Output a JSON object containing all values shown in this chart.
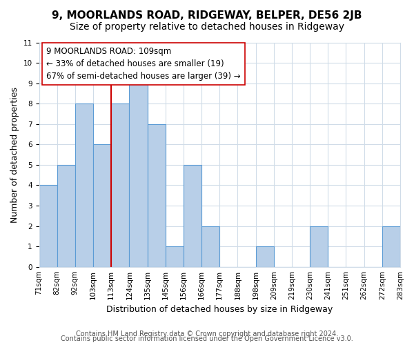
{
  "title": "9, MOORLANDS ROAD, RIDGEWAY, BELPER, DE56 2JB",
  "subtitle": "Size of property relative to detached houses in Ridgeway",
  "xlabel": "Distribution of detached houses by size in Ridgeway",
  "ylabel": "Number of detached properties",
  "bin_edge_labels": [
    "71sqm",
    "82sqm",
    "92sqm",
    "103sqm",
    "113sqm",
    "124sqm",
    "135sqm",
    "145sqm",
    "156sqm",
    "166sqm",
    "177sqm",
    "188sqm",
    "198sqm",
    "209sqm",
    "219sqm",
    "230sqm",
    "241sqm",
    "251sqm",
    "262sqm",
    "272sqm",
    "283sqm"
  ],
  "bar_values": [
    4,
    5,
    8,
    6,
    8,
    9,
    7,
    1,
    5,
    2,
    0,
    0,
    1,
    0,
    0,
    2,
    0,
    0,
    0,
    2
  ],
  "bar_color": "#b8cfe8",
  "bar_edge_color": "#5b9bd5",
  "vline_x": 4,
  "vline_color": "#cc0000",
  "annotation_line1": "9 MOORLANDS ROAD: 109sqm",
  "annotation_line2": "← 33% of detached houses are smaller (19)",
  "annotation_line3": "67% of semi-detached houses are larger (39) →",
  "ylim": [
    0,
    11
  ],
  "yticks": [
    0,
    1,
    2,
    3,
    4,
    5,
    6,
    7,
    8,
    9,
    10,
    11
  ],
  "background_color": "#ffffff",
  "grid_color": "#d0dce8",
  "footer_line1": "Contains HM Land Registry data © Crown copyright and database right 2024.",
  "footer_line2": "Contains public sector information licensed under the Open Government Licence v3.0.",
  "title_fontsize": 11,
  "subtitle_fontsize": 10,
  "axis_label_fontsize": 9,
  "tick_fontsize": 7.5,
  "annotation_fontsize": 8.5,
  "footer_fontsize": 7
}
